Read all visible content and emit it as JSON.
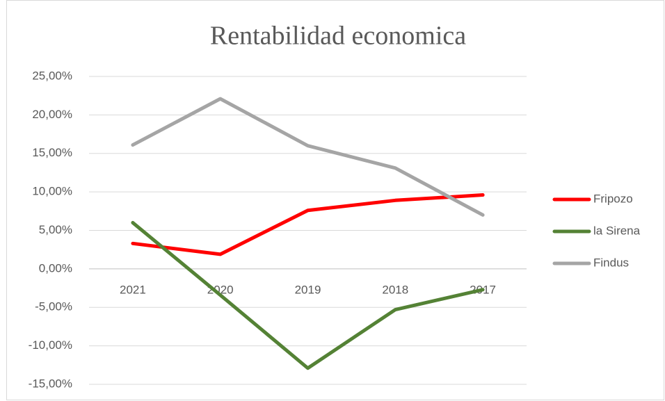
{
  "chart_data": {
    "type": "line",
    "title": "Rentabilidad economica",
    "categories": [
      "2021",
      "2020",
      "2019",
      "2018",
      "2017"
    ],
    "series": [
      {
        "name": "Fripozo",
        "color": "#ff0000",
        "values": [
          3.3,
          1.9,
          7.6,
          8.9,
          9.6
        ]
      },
      {
        "name": "la Sirena",
        "color": "#548235",
        "values": [
          6.0,
          -3.4,
          -12.9,
          -5.3,
          -2.7
        ]
      },
      {
        "name": "Findus",
        "color": "#a5a5a5",
        "values": [
          16.1,
          22.1,
          16.0,
          13.1,
          7.0
        ]
      }
    ],
    "ylim": [
      -15,
      25
    ],
    "yticks": [
      {
        "value": -15,
        "label": "-15,00%"
      },
      {
        "value": -10,
        "label": "-10,00%"
      },
      {
        "value": -5,
        "label": "-5,00%"
      },
      {
        "value": 0,
        "label": "0,00%"
      },
      {
        "value": 5,
        "label": "5,00%"
      },
      {
        "value": 10,
        "label": "10,00%"
      },
      {
        "value": 15,
        "label": "15,00%"
      },
      {
        "value": 20,
        "label": "20,00%"
      },
      {
        "value": 25,
        "label": "25,00%"
      }
    ],
    "grid": true,
    "legend": "right"
  }
}
